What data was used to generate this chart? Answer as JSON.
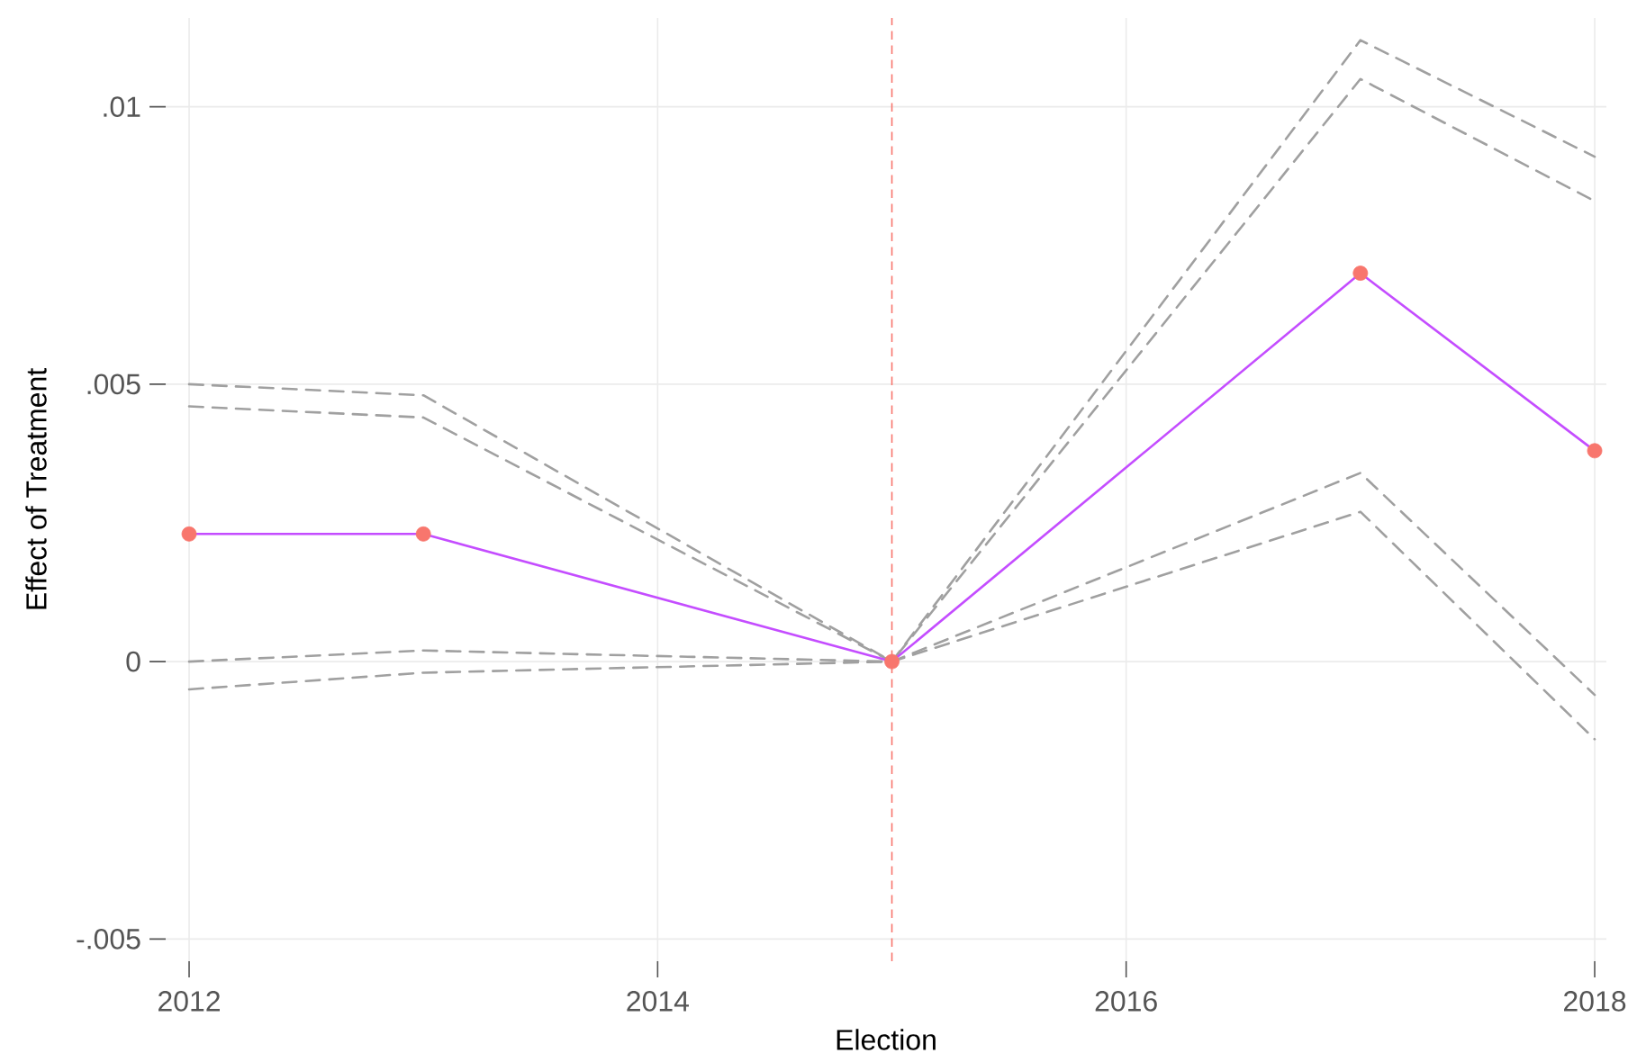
{
  "chart_data": {
    "type": "line",
    "xlabel": "Election",
    "ylabel": "Effect of Treatment",
    "x": [
      2012,
      2013,
      2015,
      2017,
      2018
    ],
    "series": [
      {
        "color": "#a0a0a0",
        "line_style": "dashed",
        "values": [
          0.005,
          0.0048,
          0,
          0.0112,
          0.0091
        ]
      },
      {
        "color": "#a0a0a0",
        "line_style": "dashed",
        "values": [
          0.0046,
          0.0044,
          0,
          0.0105,
          0.0083
        ]
      },
      {
        "color": "#a0a0a0",
        "line_style": "dashed",
        "values": [
          0,
          0.0002,
          0,
          0.0034,
          -0.0006
        ]
      },
      {
        "color": "#a0a0a0",
        "line_style": "dashed",
        "values": [
          -0.0005,
          -0.0002,
          0,
          0.0027,
          -0.0014
        ]
      },
      {
        "color": "#c44dff",
        "line_style": "solid",
        "values": [
          0.0023,
          0.0023,
          0,
          0.007,
          0.0038
        ]
      },
      {
        "type": "scatter",
        "color": "#f8766d",
        "marker": "circle",
        "values": [
          0.0023,
          0.0023,
          0,
          0.007,
          0.0038
        ]
      }
    ],
    "xlim": [
      2011.9,
      2018.05
    ],
    "ylim": [
      -0.0054,
      0.0116
    ],
    "xticks": [
      2012,
      2014,
      2016,
      2018
    ],
    "yticks": [
      {
        "value": -0.005,
        "label": "-.005"
      },
      0,
      {
        "value": 0.005,
        "label": ".005"
      },
      {
        "value": 0.01,
        "label": ".01"
      }
    ],
    "grid": true,
    "ref_lines": [
      {
        "axis": "x",
        "value": 2015,
        "color": "#f8766d",
        "line_style": "dashed"
      }
    ]
  }
}
